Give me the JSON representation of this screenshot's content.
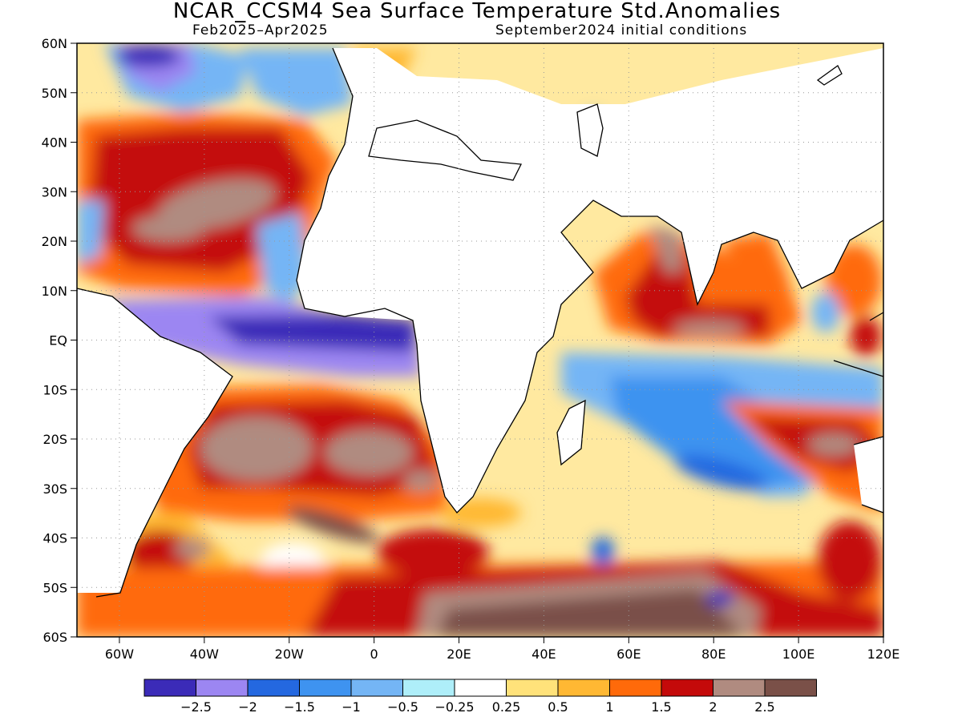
{
  "header": {
    "title": "NCAR_CCSM4 Sea Surface Temperature Std.Anomalies",
    "subtitle_left": "Feb2025–Apr2025",
    "subtitle_right": "September2024 initial conditions"
  },
  "map": {
    "lon_range": [
      -70,
      120
    ],
    "lat_range": [
      -60,
      60
    ],
    "lat_labels": [
      {
        "v": 60,
        "t": "60N"
      },
      {
        "v": 50,
        "t": "50N"
      },
      {
        "v": 40,
        "t": "40N"
      },
      {
        "v": 30,
        "t": "30N"
      },
      {
        "v": 20,
        "t": "20N"
      },
      {
        "v": 10,
        "t": "10N"
      },
      {
        "v": 0,
        "t": "EQ"
      },
      {
        "v": -10,
        "t": "10S"
      },
      {
        "v": -20,
        "t": "20S"
      },
      {
        "v": -30,
        "t": "30S"
      },
      {
        "v": -40,
        "t": "40S"
      },
      {
        "v": -50,
        "t": "50S"
      },
      {
        "v": -60,
        "t": "60S"
      }
    ],
    "lon_labels": [
      {
        "v": -60,
        "t": "60W"
      },
      {
        "v": -40,
        "t": "40W"
      },
      {
        "v": -20,
        "t": "20W"
      },
      {
        "v": 0,
        "t": "0"
      },
      {
        "v": 20,
        "t": "20E"
      },
      {
        "v": 40,
        "t": "40E"
      },
      {
        "v": 60,
        "t": "60E"
      },
      {
        "v": 80,
        "t": "80E"
      },
      {
        "v": 100,
        "t": "100E"
      },
      {
        "v": 120,
        "t": "120E"
      }
    ],
    "grid": "dotted"
  },
  "colorbar": {
    "colors": [
      "#3b2bb8",
      "#9c86f2",
      "#2468e0",
      "#3e93f0",
      "#74b5f5",
      "#aeeef9",
      "#ffffff",
      "#ffe27a",
      "#ffb833",
      "#ff6a0a",
      "#c40a0a",
      "#b08b80",
      "#7a5048"
    ],
    "labels": [
      "−2.5",
      "−2",
      "−1.5",
      "−1",
      "−0.5",
      "−0.25",
      "0.25",
      "0.5",
      "1",
      "1.5",
      "2",
      "2.5"
    ]
  }
}
